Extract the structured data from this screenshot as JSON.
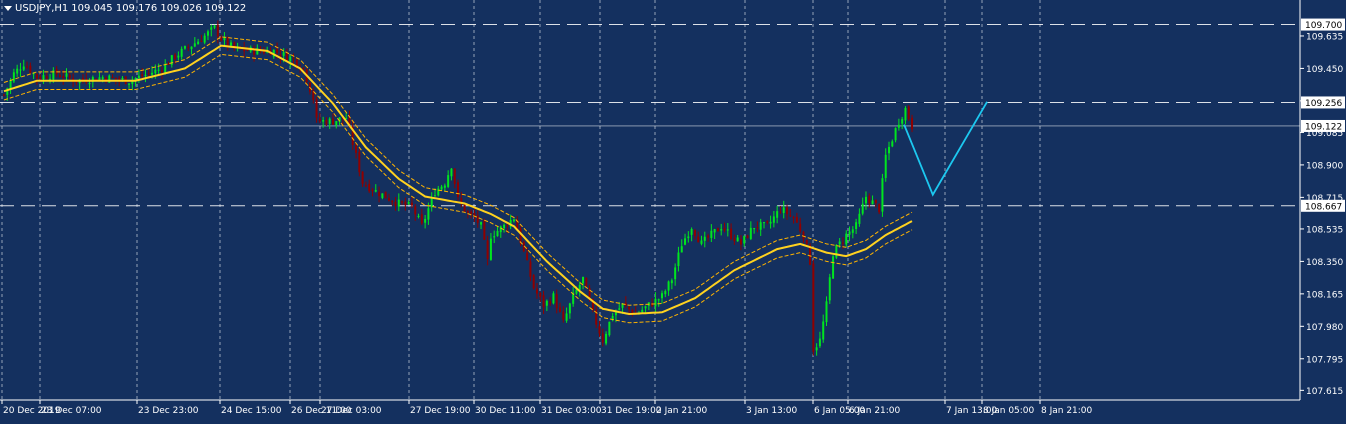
{
  "header": {
    "symbol": "USDJPY,H1",
    "ohlc": "109.045 109.176 109.026 109.122"
  },
  "colors": {
    "background": "#14305f",
    "grid": "#ffffff",
    "bull": "#00e51f",
    "bear": "#8f0000",
    "ma": "#ffd21f",
    "envelope": "#ffb400",
    "projection": "#1cc8f0",
    "axis_text": "#ffffff"
  },
  "chart_data": {
    "type": "candlestick",
    "title": "USDJPY,H1",
    "ylim": [
      107.56,
      109.84
    ],
    "y_ticks": [
      "109.635",
      "109.450",
      "109.265",
      "109.085",
      "108.900",
      "108.715",
      "108.535",
      "108.350",
      "108.165",
      "107.980",
      "107.795",
      "107.615"
    ],
    "x_ticks": [
      "20 Dec 2019",
      "23 Dec 07:00",
      "23 Dec 23:00",
      "24 Dec 15:00",
      "26 Dec 11:00",
      "27 Dec 03:00",
      "27 Dec 19:00",
      "30 Dec 11:00",
      "31 Dec 03:00",
      "31 Dec 19:00",
      "2 Jan 21:00",
      "3 Jan 13:00",
      "6 Jan 05:00",
      "6 Jan 21:00",
      "7 Jan 13:00",
      "8 Jan 05:00",
      "8 Jan 21:00"
    ],
    "horizontal_levels": [
      {
        "value": 109.7,
        "label": "109.700",
        "style": "dashed"
      },
      {
        "value": 109.256,
        "label": "109.256",
        "style": "dashed"
      },
      {
        "value": 109.122,
        "label": "109.122",
        "style": "solid"
      },
      {
        "value": 108.667,
        "label": "108.667",
        "style": "dashed"
      }
    ],
    "close_path": [
      [
        0,
        109.3
      ],
      [
        3,
        109.42
      ],
      [
        6,
        109.48
      ],
      [
        10,
        109.4
      ],
      [
        16,
        109.42
      ],
      [
        22,
        109.38
      ],
      [
        30,
        109.4
      ],
      [
        38,
        109.38
      ],
      [
        44,
        109.42
      ],
      [
        48,
        109.45
      ],
      [
        52,
        109.52
      ],
      [
        56,
        109.57
      ],
      [
        60,
        109.62
      ],
      [
        64,
        109.68
      ],
      [
        66,
        109.62
      ],
      [
        70,
        109.56
      ],
      [
        76,
        109.55
      ],
      [
        82,
        109.55
      ],
      [
        88,
        109.5
      ],
      [
        91,
        109.45
      ],
      [
        94,
        109.28
      ],
      [
        95,
        109.15
      ],
      [
        100,
        109.15
      ],
      [
        104,
        109.17
      ],
      [
        107,
        108.95
      ],
      [
        109,
        108.8
      ],
      [
        113,
        108.75
      ],
      [
        116,
        108.72
      ],
      [
        120,
        108.68
      ],
      [
        124,
        108.66
      ],
      [
        127,
        108.55
      ],
      [
        131,
        108.75
      ],
      [
        134,
        108.8
      ],
      [
        136,
        108.9
      ],
      [
        138,
        108.7
      ],
      [
        141,
        108.62
      ],
      [
        143,
        108.6
      ],
      [
        145,
        108.55
      ],
      [
        147,
        108.35
      ],
      [
        148,
        108.5
      ],
      [
        152,
        108.55
      ],
      [
        155,
        108.6
      ],
      [
        158,
        108.4
      ],
      [
        161,
        108.2
      ],
      [
        164,
        108.1
      ],
      [
        167,
        108.15
      ],
      [
        170,
        108.0
      ],
      [
        173,
        108.15
      ],
      [
        176,
        108.25
      ],
      [
        179,
        108.05
      ],
      [
        182,
        107.9
      ],
      [
        185,
        108.05
      ],
      [
        188,
        108.1
      ],
      [
        192,
        108.05
      ],
      [
        196,
        108.1
      ],
      [
        200,
        108.15
      ],
      [
        203,
        108.25
      ],
      [
        206,
        108.45
      ],
      [
        209,
        108.55
      ],
      [
        212,
        108.45
      ],
      [
        215,
        108.5
      ],
      [
        218,
        108.55
      ],
      [
        221,
        108.5
      ],
      [
        224,
        108.45
      ],
      [
        228,
        108.55
      ],
      [
        232,
        108.55
      ],
      [
        236,
        108.65
      ],
      [
        240,
        108.6
      ],
      [
        243,
        108.5
      ],
      [
        245,
        108.35
      ],
      [
        246,
        107.85
      ],
      [
        248,
        107.9
      ],
      [
        250,
        108.1
      ],
      [
        252,
        108.4
      ],
      [
        254,
        108.45
      ],
      [
        256,
        108.5
      ],
      [
        259,
        108.55
      ],
      [
        262,
        108.72
      ],
      [
        266,
        108.65
      ],
      [
        268,
        108.95
      ],
      [
        270,
        109.05
      ],
      [
        272,
        109.15
      ],
      [
        274,
        109.22
      ],
      [
        276,
        109.12
      ]
    ],
    "ma_path": [
      [
        0,
        109.32
      ],
      [
        10,
        109.38
      ],
      [
        40,
        109.38
      ],
      [
        55,
        109.45
      ],
      [
        66,
        109.58
      ],
      [
        80,
        109.55
      ],
      [
        90,
        109.45
      ],
      [
        100,
        109.25
      ],
      [
        110,
        109.0
      ],
      [
        120,
        108.82
      ],
      [
        128,
        108.72
      ],
      [
        140,
        108.68
      ],
      [
        148,
        108.62
      ],
      [
        155,
        108.55
      ],
      [
        165,
        108.35
      ],
      [
        175,
        108.18
      ],
      [
        182,
        108.08
      ],
      [
        190,
        108.05
      ],
      [
        200,
        108.06
      ],
      [
        210,
        108.14
      ],
      [
        222,
        108.3
      ],
      [
        235,
        108.42
      ],
      [
        242,
        108.45
      ],
      [
        250,
        108.4
      ],
      [
        256,
        108.38
      ],
      [
        262,
        108.42
      ],
      [
        268,
        108.5
      ],
      [
        276,
        108.58
      ]
    ],
    "envelope_offset": 0.05,
    "projection": [
      [
        273.6,
        109.13
      ],
      [
        282.3,
        108.73
      ],
      [
        298.8,
        109.26
      ]
    ],
    "x_count": 317
  }
}
